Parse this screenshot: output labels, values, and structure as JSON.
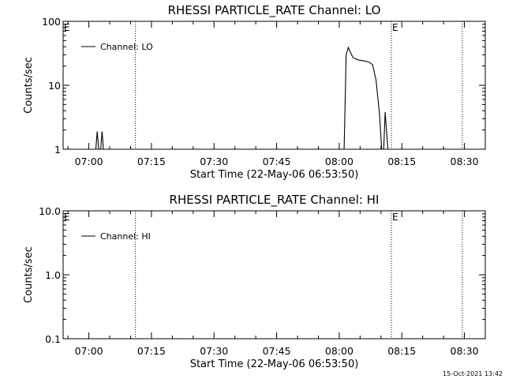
{
  "timestamp": "15-Oct-2021 13:42",
  "chart_data": [
    {
      "type": "line",
      "title": "RHESSI PARTICLE_RATE Channel: LO",
      "xlabel": "Start Time (22-May-06 06:53:50)",
      "ylabel": "Counts/sec",
      "yscale": "log",
      "ylim": [
        1,
        100
      ],
      "xlim": [
        "06:53:50",
        "08:35:00"
      ],
      "x_ticks": [
        "07:00",
        "07:15",
        "07:30",
        "07:45",
        "08:00",
        "08:15",
        "08:30"
      ],
      "y_ticks": [
        "1",
        "10",
        "100"
      ],
      "legend": {
        "label": "Channel: LO",
        "position": "top-left"
      },
      "markers": [
        {
          "label": "E",
          "time": "08:12:30"
        }
      ],
      "vlines": [
        "07:11:10",
        "08:12:30",
        "08:29:30"
      ],
      "series": [
        {
          "name": "Channel: LO",
          "segments": [
            [
              {
                "t": "07:01:40",
                "v": 1.0
              },
              {
                "t": "07:02:00",
                "v": 1.9
              },
              {
                "t": "07:02:20",
                "v": 1.0
              },
              {
                "t": "07:02:50",
                "v": 1.0
              },
              {
                "t": "07:03:10",
                "v": 1.9
              },
              {
                "t": "07:03:30",
                "v": 1.0
              }
            ],
            [
              {
                "t": "08:01:10",
                "v": 1.0
              },
              {
                "t": "08:01:40",
                "v": 30
              },
              {
                "t": "08:02:10",
                "v": 39
              },
              {
                "t": "08:02:40",
                "v": 33
              },
              {
                "t": "08:03:20",
                "v": 27
              },
              {
                "t": "08:04:30",
                "v": 25
              },
              {
                "t": "08:06:00",
                "v": 24
              },
              {
                "t": "08:07:10",
                "v": 23
              },
              {
                "t": "08:08:00",
                "v": 21
              },
              {
                "t": "08:08:50",
                "v": 12
              },
              {
                "t": "08:09:40",
                "v": 3.5
              },
              {
                "t": "08:10:10",
                "v": 1.0
              },
              {
                "t": "08:10:40",
                "v": 1.0
              },
              {
                "t": "08:11:00",
                "v": 3.8
              },
              {
                "t": "08:11:20",
                "v": 2.0
              },
              {
                "t": "08:11:40",
                "v": 1.0
              }
            ]
          ]
        }
      ]
    },
    {
      "type": "line",
      "title": "RHESSI PARTICLE_RATE Channel: HI",
      "xlabel": "Start Time (22-May-06 06:53:50)",
      "ylabel": "Counts/sec",
      "yscale": "log",
      "ylim": [
        0.1,
        10
      ],
      "xlim": [
        "06:53:50",
        "08:35:00"
      ],
      "x_ticks": [
        "07:00",
        "07:15",
        "07:30",
        "07:45",
        "08:00",
        "08:15",
        "08:30"
      ],
      "y_ticks": [
        "0.1",
        "1.0",
        "10.0"
      ],
      "legend": {
        "label": "Channel: HI",
        "position": "top-left"
      },
      "markers": [
        {
          "label": "E",
          "time": "08:12:30"
        }
      ],
      "vlines": [
        "07:11:10",
        "08:12:30",
        "08:29:30"
      ],
      "series": [
        {
          "name": "Channel: HI",
          "segments": []
        }
      ]
    }
  ]
}
